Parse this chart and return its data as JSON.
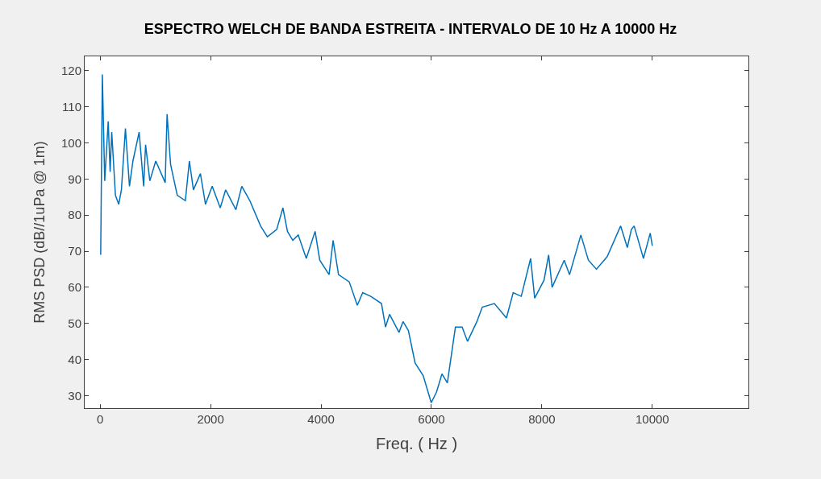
{
  "chart_data": {
    "type": "line",
    "title": "ESPECTRO WELCH DE BANDA ESTREITA - INTERVALO DE 10 Hz A 10000 Hz",
    "xlabel": "Freq. ( Hz )",
    "ylabel": "RMS PSD (dB//1uPa @ 1m)",
    "x": [
      10,
      40,
      83,
      146,
      181,
      210,
      277,
      336,
      385,
      458,
      531,
      594,
      706,
      788,
      823,
      900,
      1007,
      1178,
      1212,
      1276,
      1397,
      1543,
      1616,
      1689,
      1816,
      1908,
      2029,
      2175,
      2273,
      2458,
      2565,
      2711,
      2905,
      3028,
      3197,
      3310,
      3392,
      3489,
      3587,
      3733,
      3893,
      3977,
      4146,
      4219,
      4317,
      4511,
      4657,
      4755,
      4901,
      5095,
      5168,
      5241,
      5412,
      5485,
      5582,
      5704,
      5850,
      5996,
      6093,
      6190,
      6288,
      6434,
      6555,
      6653,
      6823,
      6920,
      7139,
      7358,
      7480,
      7626,
      7796,
      7869,
      8039,
      8122,
      8185,
      8404,
      8501,
      8706,
      8842,
      8988,
      9182,
      9426,
      9547,
      9620,
      9670,
      9839,
      9962,
      10000
    ],
    "series": [
      {
        "color": "#0072bd",
        "values": [
          69,
          119,
          89.5,
          106,
          92,
          103,
          85.5,
          83,
          87,
          104,
          88,
          95,
          103,
          88,
          99.5,
          89.5,
          95,
          89,
          108,
          94,
          85.5,
          84,
          95,
          87,
          91.5,
          83,
          88,
          82,
          87,
          81.5,
          88,
          84,
          77,
          74,
          76,
          82,
          75.5,
          73,
          74.5,
          68,
          75.5,
          67.5,
          63.5,
          73,
          63.5,
          61.5,
          55,
          58.5,
          57.5,
          55.5,
          49,
          52.5,
          47.5,
          50.5,
          48,
          39,
          35.5,
          28,
          31,
          36,
          33.5,
          49,
          49,
          45,
          50.5,
          54.5,
          55.5,
          51.5,
          58.5,
          57.5,
          68,
          57,
          62,
          69,
          60,
          67.5,
          63.5,
          74.5,
          67.5,
          65,
          68.5,
          77,
          71,
          76,
          77,
          68,
          75,
          71.5
        ]
      }
    ],
    "xlim": [
      -280,
      11740
    ],
    "ylim": [
      26.5,
      124
    ],
    "xticks": [
      0,
      2000,
      4000,
      6000,
      8000,
      10000
    ],
    "yticks": [
      30,
      40,
      50,
      60,
      70,
      80,
      90,
      100,
      110,
      120
    ]
  }
}
